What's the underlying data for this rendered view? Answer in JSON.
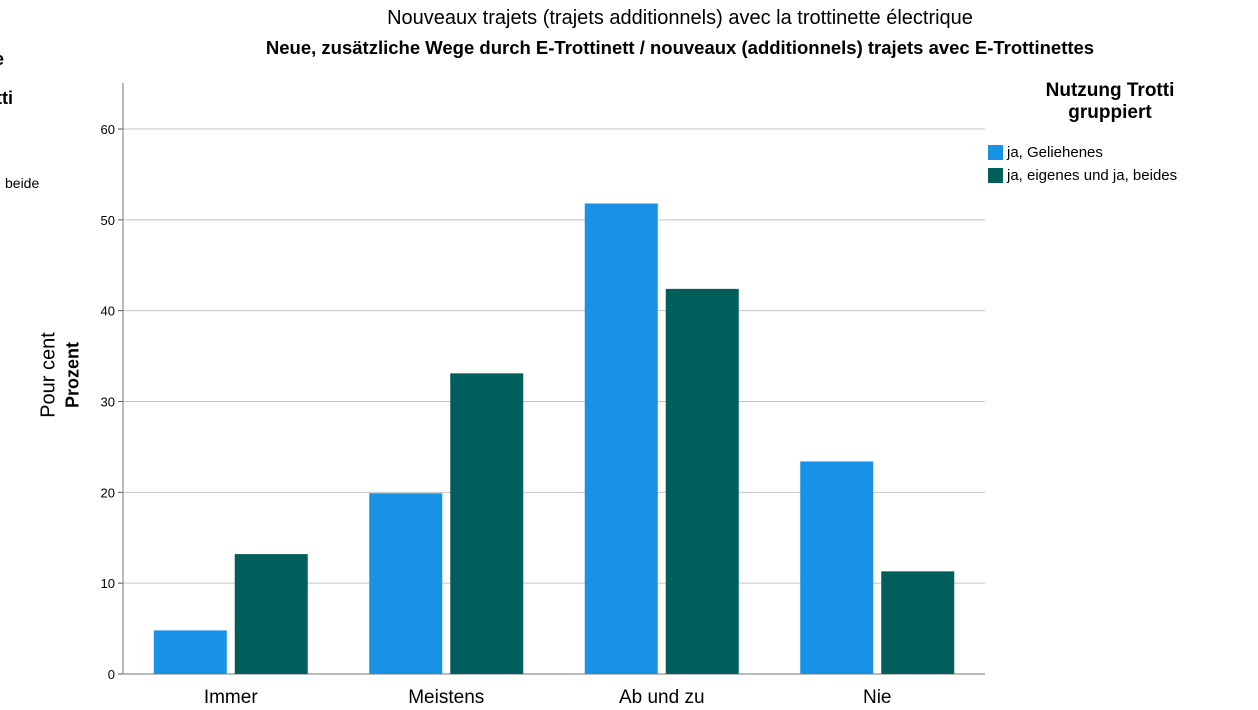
{
  "chart_data": {
    "type": "bar",
    "title": "Neue, zusätzliche Wege durch E-Trottinett / nouveaux (additionnels) trajets avec E-Trottinettes",
    "subtitle": "Nouveaux trajets (trajets additionnels) avec la trottinette électrique",
    "xlabel": "",
    "ylabel_fr": "Pour cent",
    "ylabel_de": "Prozent",
    "categories": [
      "Immer",
      "Meistens",
      "Ab und zu",
      "Nie"
    ],
    "yticks": [
      "0",
      "10",
      "20",
      "30",
      "40",
      "50",
      "60"
    ],
    "ylim": [
      0,
      60
    ],
    "grid": true,
    "legend_position": "right",
    "legend_title": "Nutzung Trotti gruppiert",
    "series": [
      {
        "name": "ja, Geliehenes",
        "color": "#1792e5",
        "values": [
          4.8,
          19.9,
          51.8,
          23.4
        ]
      },
      {
        "name": "ja, eigenes und ja, beides",
        "color": "#005f5b",
        "values": [
          13.2,
          33.1,
          42.4,
          11.3
        ]
      }
    ],
    "clipped_left_text": [
      "e",
      "tti",
      "beide"
    ]
  }
}
